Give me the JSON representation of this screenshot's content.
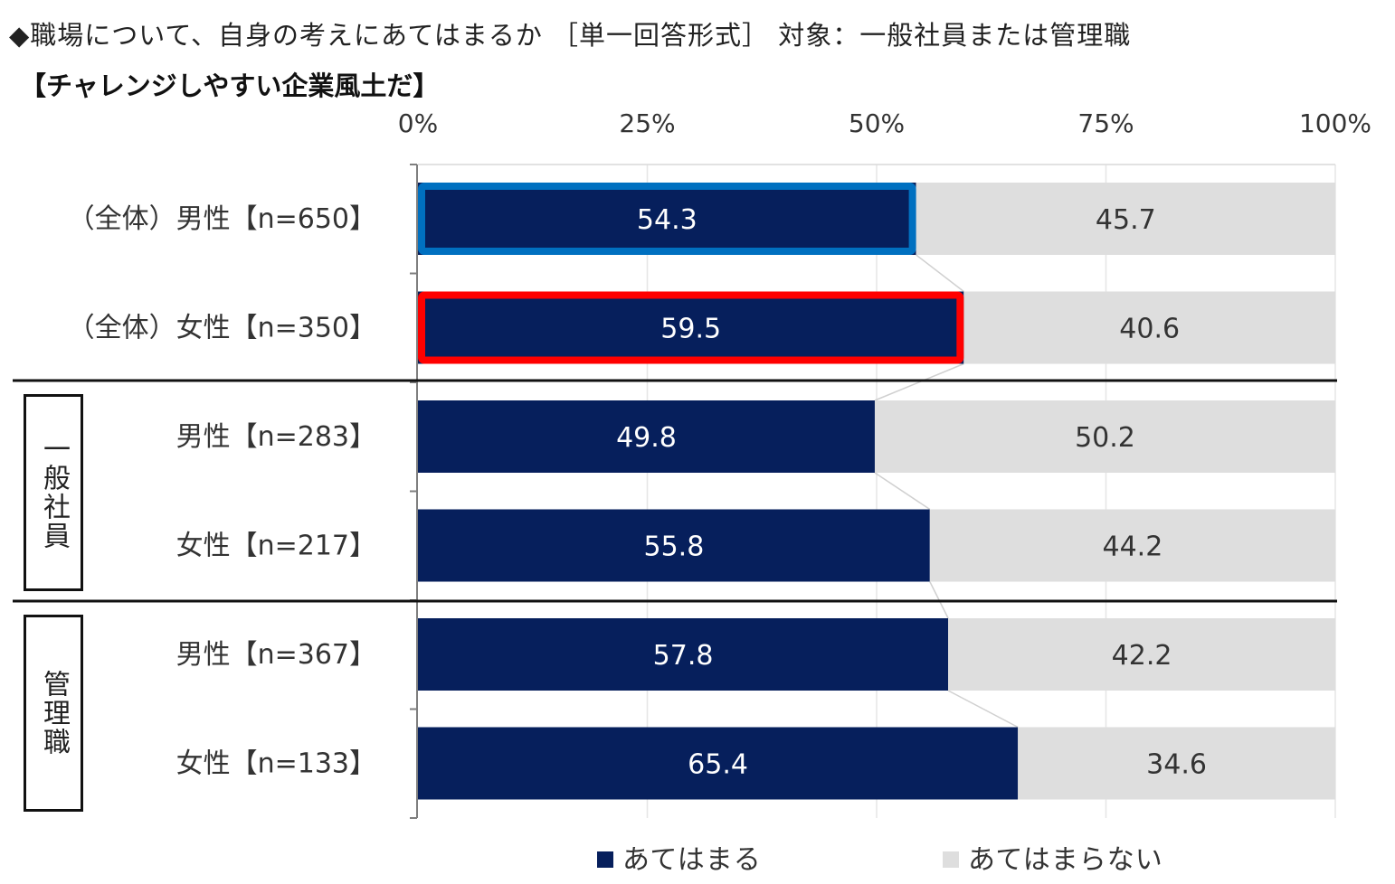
{
  "header": {
    "title": "◆職場について、自身の考えにあてはまるか ［単一回答形式］ 対象：一般社員または管理職",
    "subtitle": "【チャレンジしやすい企業風土だ】"
  },
  "groups": [
    {
      "label": "一般社員",
      "rows": [
        2,
        3
      ]
    },
    {
      "label": "管理職",
      "rows": [
        4,
        5
      ]
    }
  ],
  "colors": {
    "applies": "#061f5c",
    "not_applies": "#dedede",
    "highlight_male": "#0070c0",
    "highlight_female": "#ff0000"
  },
  "chart_data": {
    "type": "bar",
    "orientation": "horizontal",
    "stacked": true,
    "normalized_percent": true,
    "xlim": [
      0,
      100
    ],
    "ticks": [
      "0%",
      "25%",
      "50%",
      "75%",
      "100%"
    ],
    "categories": [
      "（全体）男性【n=650】",
      "（全体）女性【n=350】",
      "男性【n=283】",
      "女性【n=217】",
      "男性【n=367】",
      "女性【n=133】"
    ],
    "series": [
      {
        "name": "あてはまる",
        "values": [
          54.3,
          59.5,
          49.8,
          55.8,
          57.8,
          65.4
        ]
      },
      {
        "name": "あてはまらない",
        "values": [
          45.7,
          40.6,
          50.2,
          44.2,
          42.2,
          34.6
        ]
      }
    ],
    "highlighted_rows": [
      0,
      1
    ],
    "legend_position": "bottom",
    "grid": true
  }
}
